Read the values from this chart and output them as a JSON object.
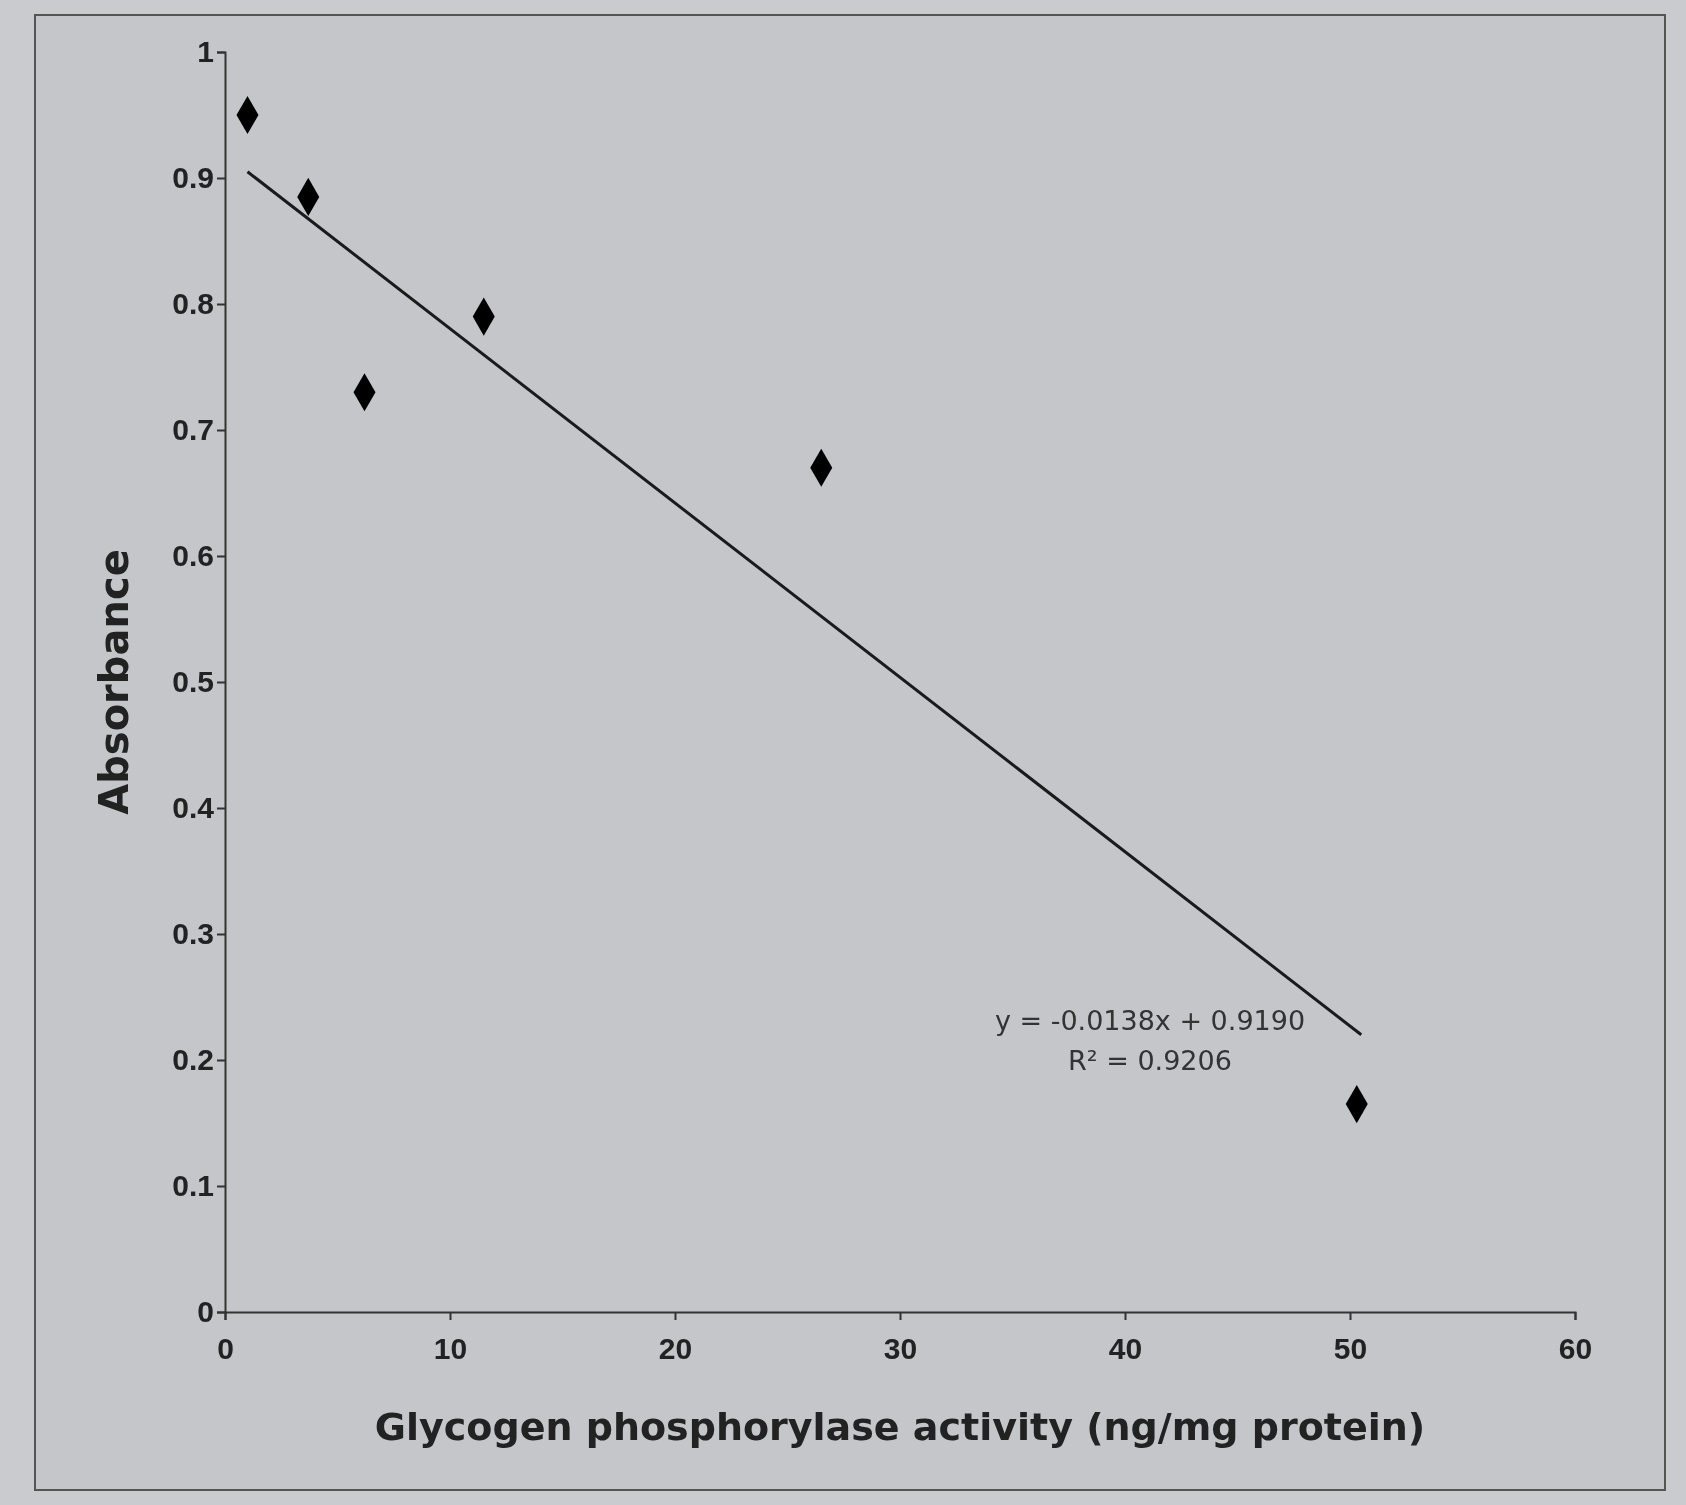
{
  "chart_data": {
    "type": "scatter",
    "xlabel": "Glycogen phosphorylase activity (ng/mg protein)",
    "ylabel": "Absorbance",
    "xlim": [
      0,
      60
    ],
    "xticks": [
      0,
      10,
      20,
      30,
      40,
      50,
      60
    ],
    "ylim": [
      0,
      1
    ],
    "yticks": [
      0,
      0.1,
      0.2,
      0.3,
      0.4,
      0.5,
      0.6,
      0.7,
      0.8,
      0.9,
      1
    ],
    "grid": false,
    "marker": "diamond",
    "series": [
      {
        "color": "#000000",
        "x": [
          1,
          3.7,
          6.2,
          11.5,
          26.5,
          50.3
        ],
        "values": [
          0.95,
          0.885,
          0.73,
          0.79,
          0.67,
          0.165
        ]
      },
      {
        "type": "line",
        "marker": "none",
        "color": "#1a1a1a",
        "x": [
          1,
          50.5
        ],
        "values": [
          0.905,
          0.22
        ]
      }
    ],
    "annotations": [
      "y = -0.0138x + 0.9190",
      "R² = 0.9206"
    ]
  }
}
